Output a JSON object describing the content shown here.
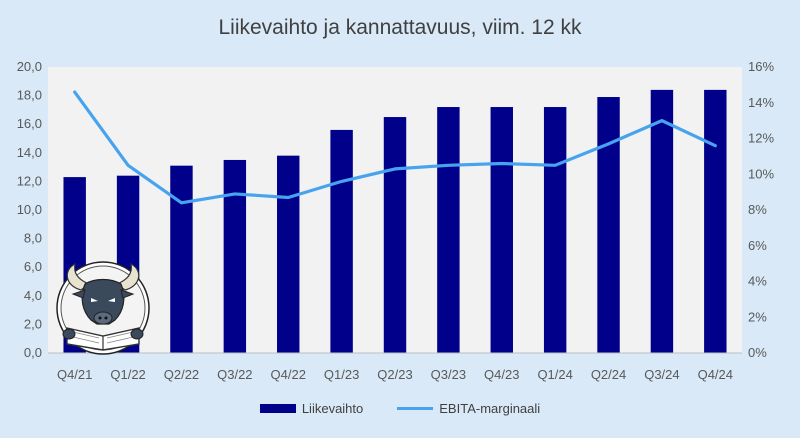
{
  "chart_data": {
    "type": "bar+line",
    "title": "Liikevaihto ja kannattavuus, viim. 12 kk",
    "categories": [
      "Q4/21",
      "Q1/22",
      "Q2/22",
      "Q3/22",
      "Q4/22",
      "Q1/23",
      "Q2/23",
      "Q3/23",
      "Q4/23",
      "Q1/24",
      "Q2/24",
      "Q3/24",
      "Q4/24"
    ],
    "series": [
      {
        "name": "Liikevaihto",
        "type": "bar",
        "axis": "left",
        "color": "#00008b",
        "values": [
          12.3,
          12.4,
          13.1,
          13.5,
          13.8,
          15.6,
          16.5,
          17.2,
          17.2,
          17.2,
          17.9,
          18.4,
          18.4
        ]
      },
      {
        "name": "EBITA-marginaali",
        "type": "line",
        "axis": "right",
        "color": "#47a3ee",
        "values": [
          14.6,
          10.5,
          8.4,
          8.9,
          8.7,
          9.6,
          10.3,
          10.5,
          10.6,
          10.5,
          11.7,
          13.0,
          11.6
        ]
      }
    ],
    "y_left": {
      "min": 0,
      "max": 20,
      "step": 2,
      "tick_labels": [
        "0,0",
        "2,0",
        "4,0",
        "6,0",
        "8,0",
        "10,0",
        "12,0",
        "14,0",
        "16,0",
        "18,0",
        "20,0"
      ]
    },
    "y_right": {
      "min": 0,
      "max": 16,
      "step": 2,
      "tick_labels": [
        "0%",
        "2%",
        "4%",
        "6%",
        "8%",
        "10%",
        "12%",
        "14%",
        "16%"
      ]
    },
    "legend_position": "bottom",
    "grid": false,
    "logo": "bull-reading-book-logo"
  }
}
